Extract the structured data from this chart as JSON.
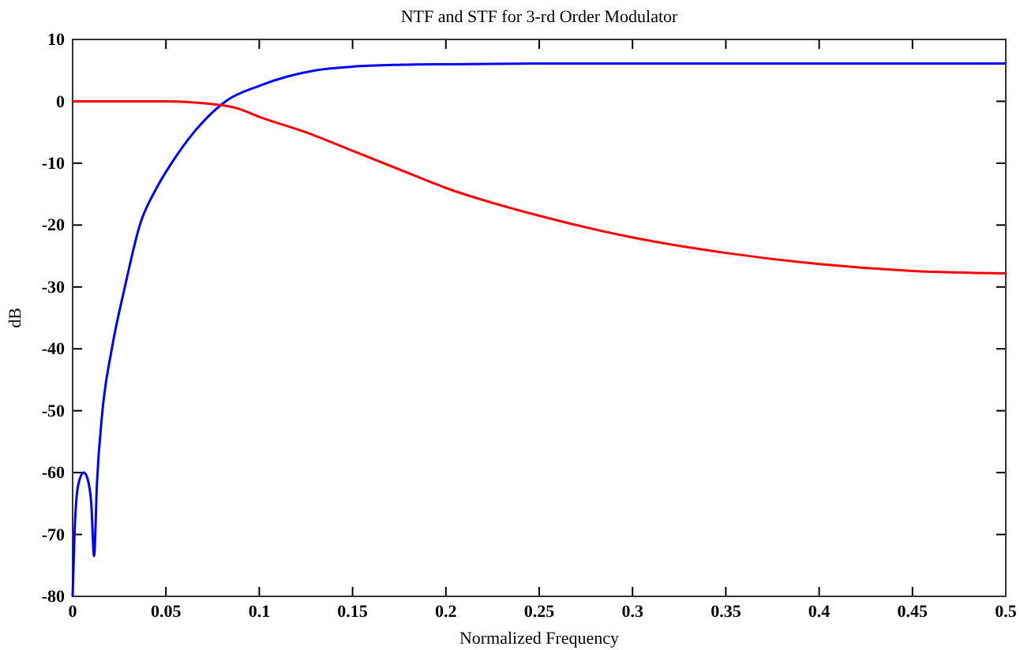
{
  "chart_data": {
    "type": "line",
    "title": "NTF and STF for 3-rd Order Modulator",
    "xlabel": "Normalized Frequency",
    "ylabel": "dB",
    "xlim": [
      0,
      0.5
    ],
    "xticks": [
      0,
      0.05,
      0.1,
      0.15,
      0.2,
      0.25,
      0.3,
      0.35,
      0.4,
      0.45,
      0.5
    ],
    "ylim": [
      -80,
      10
    ],
    "yticks": [
      -80,
      -70,
      -60,
      -50,
      -40,
      -30,
      -20,
      -10,
      0,
      10
    ],
    "grid": false,
    "series": [
      {
        "color": "#0000ff",
        "x": [
          0,
          0.001,
          0.003,
          0.006,
          0.008,
          0.01,
          0.0115,
          0.013,
          0.016,
          0.021,
          0.028,
          0.036,
          0.045,
          0.053,
          0.065,
          0.082,
          0.1,
          0.115,
          0.13,
          0.15,
          0.175,
          0.2,
          0.25,
          0.3,
          0.4,
          0.5
        ],
        "values": [
          -80,
          -70,
          -62,
          -60,
          -61,
          -65,
          -73.5,
          -62,
          -50,
          -40,
          -30,
          -20,
          -14,
          -10,
          -5,
          0,
          2.5,
          4,
          5,
          5.6,
          5.9,
          6,
          6.1,
          6.1,
          6.1,
          6.1
        ]
      },
      {
        "color": "#ff0000",
        "x": [
          0,
          0.03,
          0.05,
          0.07,
          0.088,
          0.1,
          0.125,
          0.15,
          0.175,
          0.2,
          0.25,
          0.3,
          0.35,
          0.4,
          0.45,
          0.5
        ],
        "values": [
          0,
          0,
          0,
          -0.3,
          -1.1,
          -2.5,
          -5,
          -8,
          -11,
          -14,
          -18.5,
          -22,
          -24.5,
          -26.3,
          -27.4,
          -27.8
        ]
      }
    ]
  }
}
